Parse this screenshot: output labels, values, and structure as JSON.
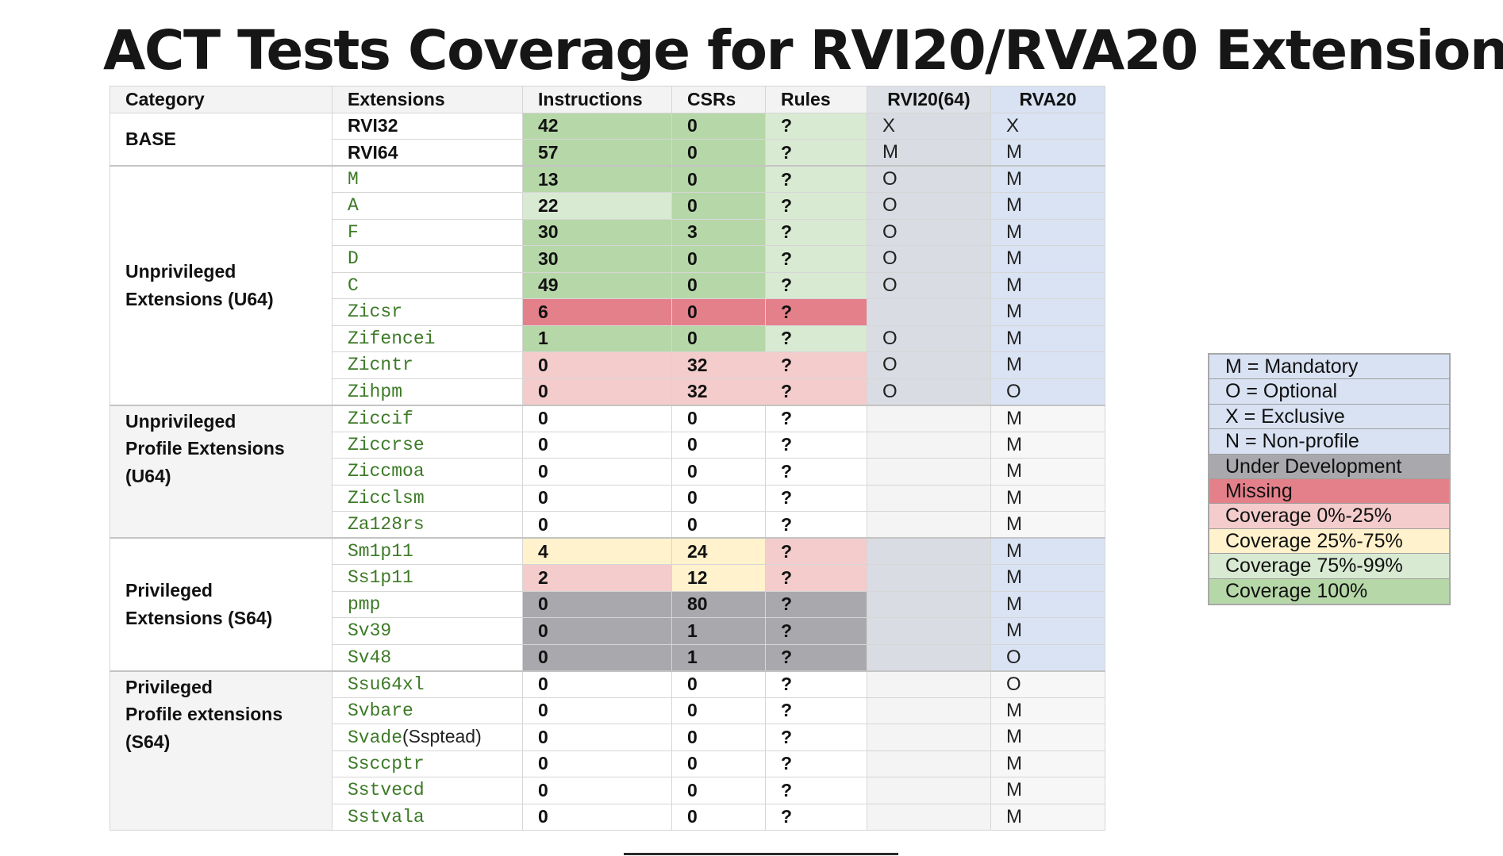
{
  "title": "ACT Tests Coverage for RVI20/RVA20 Extension",
  "headers": {
    "category": "Category",
    "extensions": "Extensions",
    "instructions": "Instructions",
    "csrs": "CSRs",
    "rules": "Rules",
    "rvi": "RVI20(64)",
    "rva": "RVA20"
  },
  "categories": {
    "base": "BASE",
    "unpriv_line1": "Unprivileged",
    "unpriv_line2": "Extensions (U64)",
    "unpriv_prof_line1": "Unprivileged",
    "unpriv_prof_line2": "Profile Extensions",
    "unpriv_prof_line3": "(U64)",
    "priv_line1": "Privileged",
    "priv_line2": "Extensions (S64)",
    "priv_prof_line1": "Privileged",
    "priv_prof_line2": "Profile extensions",
    "priv_prof_line3": "(S64)"
  },
  "rows": [
    {
      "ext": "RVI32",
      "ext_paren": "",
      "instructions": "42",
      "csrs": "0",
      "rules": "?",
      "rvi": "X",
      "rva": "X"
    },
    {
      "ext": "RVI64",
      "ext_paren": "",
      "instructions": "57",
      "csrs": "0",
      "rules": "?",
      "rvi": "M",
      "rva": "M"
    },
    {
      "ext": "M",
      "ext_paren": "",
      "instructions": "13",
      "csrs": "0",
      "rules": "?",
      "rvi": "O",
      "rva": "M"
    },
    {
      "ext": "A",
      "ext_paren": "",
      "instructions": "22",
      "csrs": "0",
      "rules": "?",
      "rvi": "O",
      "rva": "M"
    },
    {
      "ext": "F",
      "ext_paren": "",
      "instructions": "30",
      "csrs": "3",
      "rules": "?",
      "rvi": "O",
      "rva": "M"
    },
    {
      "ext": "D",
      "ext_paren": "",
      "instructions": "30",
      "csrs": "0",
      "rules": "?",
      "rvi": "O",
      "rva": "M"
    },
    {
      "ext": "C",
      "ext_paren": "",
      "instructions": "49",
      "csrs": "0",
      "rules": "?",
      "rvi": "O",
      "rva": "M"
    },
    {
      "ext": "Zicsr",
      "ext_paren": "",
      "instructions": "6",
      "csrs": "0",
      "rules": "?",
      "rvi": "",
      "rva": "M"
    },
    {
      "ext": "Zifencei",
      "ext_paren": "",
      "instructions": "1",
      "csrs": "0",
      "rules": "?",
      "rvi": "O",
      "rva": "M"
    },
    {
      "ext": "Zicntr",
      "ext_paren": "",
      "instructions": "0",
      "csrs": "32",
      "rules": "?",
      "rvi": "O",
      "rva": "M"
    },
    {
      "ext": "Zihpm",
      "ext_paren": "",
      "instructions": "0",
      "csrs": "32",
      "rules": "?",
      "rvi": "O",
      "rva": "O"
    },
    {
      "ext": "Ziccif",
      "ext_paren": "",
      "instructions": "0",
      "csrs": "0",
      "rules": "?",
      "rvi": "",
      "rva": "M"
    },
    {
      "ext": "Ziccrse",
      "ext_paren": "",
      "instructions": "0",
      "csrs": "0",
      "rules": "?",
      "rvi": "",
      "rva": "M"
    },
    {
      "ext": "Ziccmoa",
      "ext_paren": "",
      "instructions": "0",
      "csrs": "0",
      "rules": "?",
      "rvi": "",
      "rva": "M"
    },
    {
      "ext": "Zicclsm",
      "ext_paren": "",
      "instructions": "0",
      "csrs": "0",
      "rules": "?",
      "rvi": "",
      "rva": "M"
    },
    {
      "ext": "Za128rs",
      "ext_paren": "",
      "instructions": "0",
      "csrs": "0",
      "rules": "?",
      "rvi": "",
      "rva": "M"
    },
    {
      "ext": "Sm1p11",
      "ext_paren": "",
      "instructions": "4",
      "csrs": "24",
      "rules": "?",
      "rvi": "",
      "rva": "M"
    },
    {
      "ext": "Ss1p11",
      "ext_paren": "",
      "instructions": "2",
      "csrs": "12",
      "rules": "?",
      "rvi": "",
      "rva": "M"
    },
    {
      "ext": "pmp",
      "ext_paren": "",
      "instructions": "0",
      "csrs": "80",
      "rules": "?",
      "rvi": "",
      "rva": "M"
    },
    {
      "ext": "Sv39",
      "ext_paren": "",
      "instructions": "0",
      "csrs": "1",
      "rules": "?",
      "rvi": "",
      "rva": "M"
    },
    {
      "ext": "Sv48",
      "ext_paren": "",
      "instructions": "0",
      "csrs": "1",
      "rules": "?",
      "rvi": "",
      "rva": "O"
    },
    {
      "ext": "Ssu64xl",
      "ext_paren": "",
      "instructions": "0",
      "csrs": "0",
      "rules": "?",
      "rvi": "",
      "rva": "O"
    },
    {
      "ext": "Svbare",
      "ext_paren": "",
      "instructions": "0",
      "csrs": "0",
      "rules": "?",
      "rvi": "",
      "rva": "M"
    },
    {
      "ext": "Svade",
      "ext_paren": "(Ssptead)",
      "instructions": "0",
      "csrs": "0",
      "rules": "?",
      "rvi": "",
      "rva": "M"
    },
    {
      "ext": "Ssccptr",
      "ext_paren": "",
      "instructions": "0",
      "csrs": "0",
      "rules": "?",
      "rvi": "",
      "rva": "M"
    },
    {
      "ext": "Sstvecd",
      "ext_paren": "",
      "instructions": "0",
      "csrs": "0",
      "rules": "?",
      "rvi": "",
      "rva": "M"
    },
    {
      "ext": "Sstvala",
      "ext_paren": "",
      "instructions": "0",
      "csrs": "0",
      "rules": "?",
      "rvi": "",
      "rva": "M"
    }
  ],
  "legend": [
    {
      "label": "M = Mandatory",
      "color": "#d8e2f3"
    },
    {
      "label": "O = Optional",
      "color": "#d8e2f3"
    },
    {
      "label": "X = Exclusive",
      "color": "#d8e2f3"
    },
    {
      "label": "N = Non-profile",
      "color": "#d8e2f3"
    },
    {
      "label": "Under Development",
      "color": "#a9a9ad"
    },
    {
      "label": "Missing",
      "color": "#e4808a"
    },
    {
      "label": "Coverage 0%-25%",
      "color": "#f4cccc"
    },
    {
      "label": "Coverage 25%-75%",
      "color": "#fff2cc"
    },
    {
      "label": "Coverage 75%-99%",
      "color": "#d9ead3"
    },
    {
      "label": "Coverage 100%",
      "color": "#b6d7a8"
    }
  ]
}
